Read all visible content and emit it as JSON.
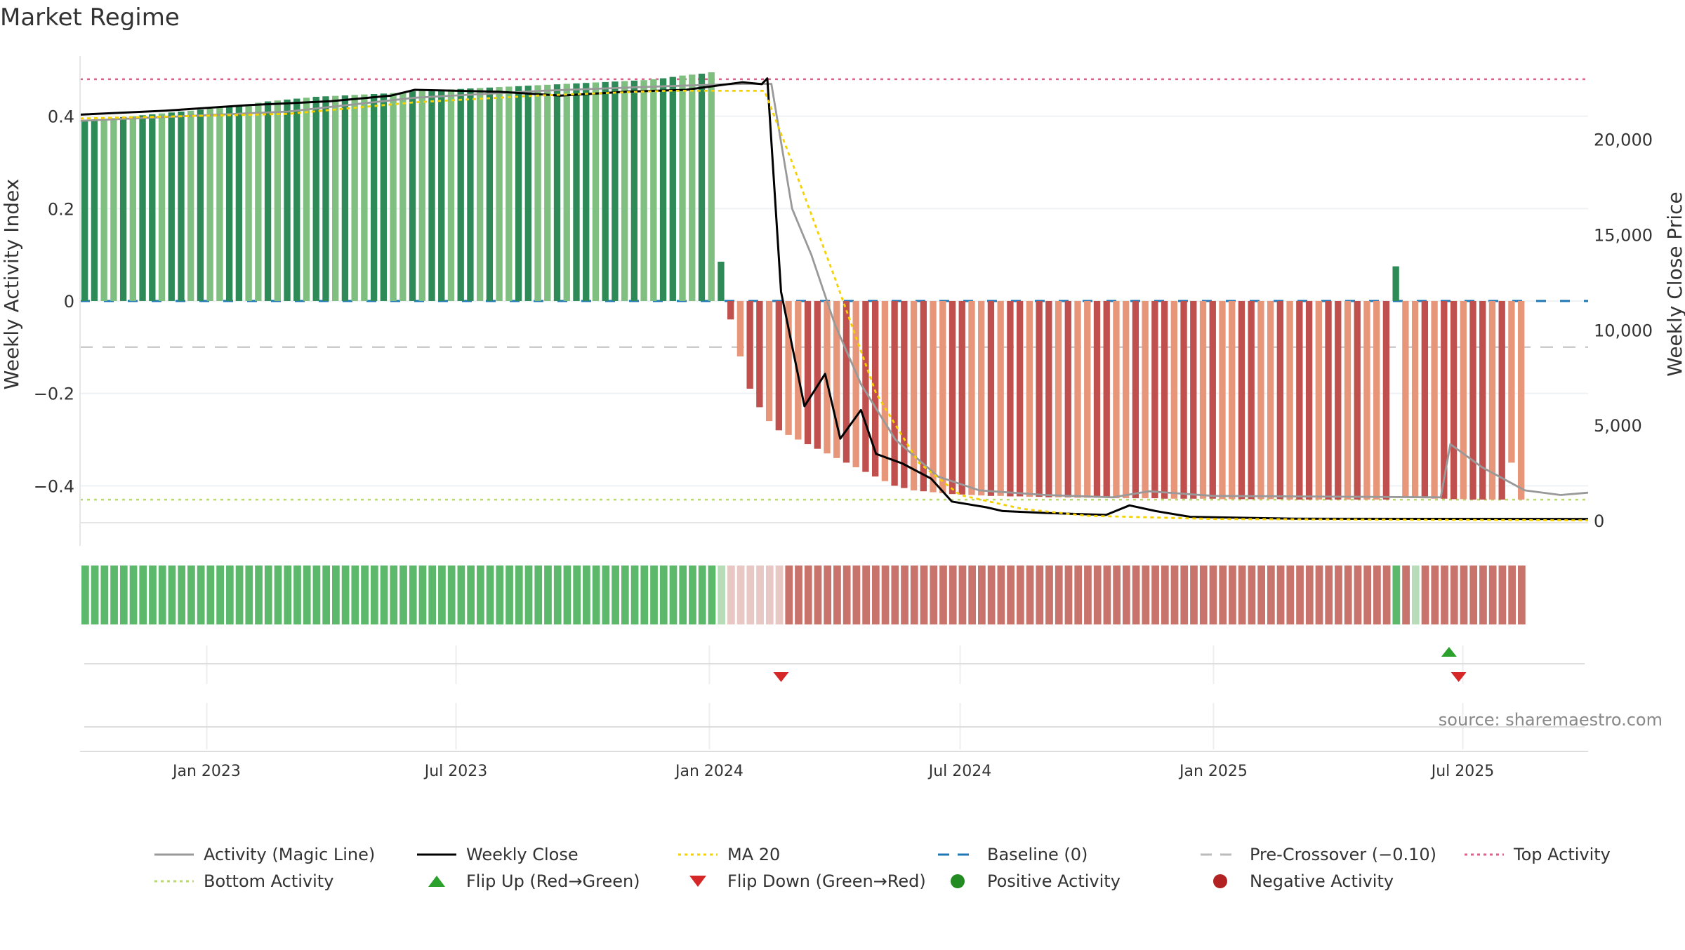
{
  "chart_data": {
    "type": "bar",
    "title": "Market Regime",
    "source": "source: sharemaestro.com",
    "ylabel_left": "Weekly Activity Index",
    "ylabel_right": "Weekly Close Price",
    "left_axis": {
      "ylim": [
        -0.48,
        0.53
      ],
      "ticks": [
        0.4,
        0.2,
        0,
        -0.2,
        -0.4
      ],
      "tick_labels": [
        "0.4",
        "0.2",
        "0",
        "−0.2",
        "−0.4"
      ]
    },
    "right_axis": {
      "ylim": [
        0,
        24000
      ],
      "ticks": [
        20000,
        15000,
        10000,
        5000,
        0
      ],
      "tick_labels": [
        "20,000",
        "15,000",
        "10,000",
        "5,000",
        "0"
      ]
    },
    "x_axis": {
      "range": [
        "2022-10-01",
        "2025-09-30"
      ],
      "ticks": [
        "2023-01-01",
        "2023-07-01",
        "2024-01-01",
        "2024-07-01",
        "2025-01-01",
        "2025-07-01"
      ],
      "tick_labels": [
        "Jan 2023",
        "Jul 2023",
        "Jan 2024",
        "Jul 2024",
        "Jan 2025",
        "Jul 2025"
      ]
    },
    "reference_lines": {
      "top_activity": 0.48,
      "bottom_activity": -0.43,
      "baseline": 0,
      "pre_crossover": -0.1
    },
    "bars": {
      "start_date": "2022-10-01",
      "interval_days": 7,
      "values": [
        0.39,
        0.392,
        0.394,
        0.396,
        0.398,
        0.4,
        0.402,
        0.404,
        0.406,
        0.408,
        0.41,
        0.412,
        0.414,
        0.416,
        0.418,
        0.42,
        0.423,
        0.426,
        0.429,
        0.432,
        0.434,
        0.436,
        0.438,
        0.44,
        0.442,
        0.443,
        0.444,
        0.445,
        0.446,
        0.447,
        0.448,
        0.449,
        0.45,
        0.452,
        0.454,
        0.455,
        0.456,
        0.457,
        0.458,
        0.459,
        0.46,
        0.461,
        0.462,
        0.463,
        0.464,
        0.465,
        0.466,
        0.467,
        0.468,
        0.469,
        0.47,
        0.471,
        0.472,
        0.473,
        0.474,
        0.475,
        0.476,
        0.477,
        0.478,
        0.48,
        0.482,
        0.485,
        0.488,
        0.49,
        0.492,
        0.495,
        0.085,
        -0.04,
        -0.12,
        -0.19,
        -0.23,
        -0.26,
        -0.28,
        -0.29,
        -0.3,
        -0.31,
        -0.32,
        -0.33,
        -0.34,
        -0.35,
        -0.36,
        -0.37,
        -0.38,
        -0.39,
        -0.4,
        -0.405,
        -0.41,
        -0.412,
        -0.414,
        -0.416,
        -0.418,
        -0.419,
        -0.42,
        -0.421,
        -0.422,
        -0.422,
        -0.423,
        -0.423,
        -0.424,
        -0.424,
        -0.425,
        -0.425,
        -0.425,
        -0.426,
        -0.426,
        -0.426,
        -0.426,
        -0.427,
        -0.427,
        -0.427,
        -0.427,
        -0.427,
        -0.428,
        -0.428,
        -0.428,
        -0.428,
        -0.428,
        -0.428,
        -0.429,
        -0.429,
        -0.429,
        -0.429,
        -0.429,
        -0.429,
        -0.429,
        -0.43,
        -0.43,
        -0.43,
        -0.43,
        -0.43,
        -0.43,
        -0.43,
        -0.43,
        -0.43,
        -0.43,
        -0.43,
        0.075,
        -0.425,
        -0.426,
        -0.427,
        -0.428,
        -0.428,
        -0.429,
        -0.429,
        -0.43,
        -0.43,
        -0.43,
        -0.43,
        -0.35,
        -0.43
      ],
      "colors": [
        "#2e8b57",
        "#7fbf7f",
        "#c0504d",
        "#e8967a"
      ]
    },
    "series": [
      {
        "name": "Activity (Magic Line)",
        "color": "#999999",
        "points": [
          [
            "2022-10-01",
            0.39
          ],
          [
            "2023-03-01",
            0.41
          ],
          [
            "2023-06-01",
            0.44
          ],
          [
            "2023-09-01",
            0.455
          ],
          [
            "2023-12-01",
            0.465
          ],
          [
            "2024-01-25",
            0.47
          ],
          [
            "2024-02-15",
            0.47
          ],
          [
            "2024-03-01",
            0.2
          ],
          [
            "2024-03-15",
            0.1
          ],
          [
            "2024-04-01",
            -0.05
          ],
          [
            "2024-04-20",
            -0.18
          ],
          [
            "2024-05-15",
            -0.3
          ],
          [
            "2024-06-15",
            -0.38
          ],
          [
            "2024-07-15",
            -0.41
          ],
          [
            "2024-09-01",
            -0.42
          ],
          [
            "2024-10-20",
            -0.425
          ],
          [
            "2024-11-15",
            -0.412
          ],
          [
            "2025-01-01",
            -0.422
          ],
          [
            "2025-06-15",
            -0.425
          ],
          [
            "2025-06-22",
            -0.31
          ],
          [
            "2025-07-15",
            -0.36
          ],
          [
            "2025-08-15",
            -0.41
          ],
          [
            "2025-09-10",
            -0.42
          ],
          [
            "2025-09-30",
            -0.415
          ]
        ]
      },
      {
        "name": "Weekly Close",
        "color": "#000000",
        "points": [
          [
            "2022-10-01",
            21300
          ],
          [
            "2022-12-01",
            21500
          ],
          [
            "2023-02-01",
            21800
          ],
          [
            "2023-04-01",
            22000
          ],
          [
            "2023-05-15",
            22300
          ],
          [
            "2023-06-01",
            22600
          ],
          [
            "2023-08-01",
            22500
          ],
          [
            "2023-09-15",
            22300
          ],
          [
            "2023-11-01",
            22500
          ],
          [
            "2023-12-15",
            22600
          ],
          [
            "2024-01-25",
            23000
          ],
          [
            "2024-02-08",
            22900
          ],
          [
            "2024-02-12",
            23200
          ],
          [
            "2024-02-22",
            12000
          ],
          [
            "2024-03-10",
            6000
          ],
          [
            "2024-03-25",
            7700
          ],
          [
            "2024-04-05",
            4300
          ],
          [
            "2024-04-20",
            5800
          ],
          [
            "2024-05-01",
            3500
          ],
          [
            "2024-05-20",
            3000
          ],
          [
            "2024-06-10",
            2200
          ],
          [
            "2024-06-25",
            1000
          ],
          [
            "2024-07-20",
            700
          ],
          [
            "2024-08-01",
            500
          ],
          [
            "2024-09-01",
            400
          ],
          [
            "2024-10-15",
            300
          ],
          [
            "2024-11-01",
            800
          ],
          [
            "2024-11-20",
            500
          ],
          [
            "2024-12-15",
            200
          ],
          [
            "2025-03-01",
            100
          ],
          [
            "2025-09-30",
            80
          ]
        ]
      },
      {
        "name": "MA 20",
        "color": "#f5d100",
        "points": [
          [
            "2022-10-01",
            0.395
          ],
          [
            "2023-03-01",
            0.405
          ],
          [
            "2023-06-01",
            0.43
          ],
          [
            "2023-09-01",
            0.445
          ],
          [
            "2023-12-01",
            0.455
          ],
          [
            "2024-02-10",
            0.455
          ],
          [
            "2024-03-01",
            0.3
          ],
          [
            "2024-04-01",
            0.05
          ],
          [
            "2024-05-01",
            -0.2
          ],
          [
            "2024-06-01",
            -0.35
          ],
          [
            "2024-07-01",
            -0.42
          ],
          [
            "2024-08-15",
            -0.45
          ],
          [
            "2024-10-01",
            -0.465
          ],
          [
            "2025-01-01",
            -0.472
          ],
          [
            "2025-09-30",
            -0.475
          ]
        ]
      }
    ],
    "regime_strip": {
      "colors": [
        "#5cb86a",
        "#b8dcb8",
        "#e8c8c4",
        "#c8736c"
      ]
    },
    "flip_up": [
      "2025-06-21"
    ],
    "flip_down": [
      "2024-02-22",
      "2025-06-28"
    ],
    "legend": [
      {
        "label": "Activity (Magic Line)",
        "style": "line-solid",
        "color": "#999999"
      },
      {
        "label": "Weekly Close",
        "style": "line-solid",
        "color": "#000000"
      },
      {
        "label": "MA 20",
        "style": "line-dotted",
        "color": "#f5d100"
      },
      {
        "label": "Baseline (0)",
        "style": "line-dashed",
        "color": "#1f77b4"
      },
      {
        "label": "Pre-Crossover (−0.10)",
        "style": "line-dashed",
        "color": "#bbbbbb"
      },
      {
        "label": "Top Activity",
        "style": "line-dotted",
        "color": "#e0608a"
      },
      {
        "label": "Bottom Activity",
        "style": "line-dotted",
        "color": "#b7d96e"
      },
      {
        "label": "Flip Up (Red→Green)",
        "style": "triangle-up",
        "color": "#2ca02c"
      },
      {
        "label": "Flip Down (Green→Red)",
        "style": "triangle-down",
        "color": "#d62728"
      },
      {
        "label": "Positive Activity",
        "style": "circle",
        "color": "#228b22"
      },
      {
        "label": "Negative Activity",
        "style": "circle",
        "color": "#b22222"
      }
    ]
  }
}
